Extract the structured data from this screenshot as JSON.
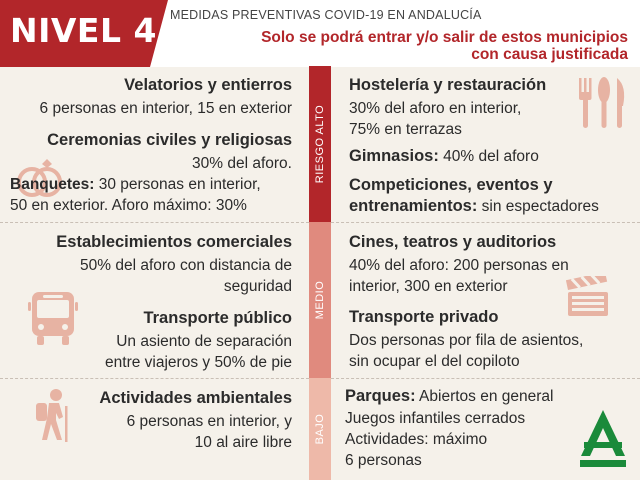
{
  "header": {
    "level": "NIVEL 4",
    "subtitle": "MEDIDAS PREVENTIVAS COVID-19 EN ANDALUCÍA",
    "notice_line1": "Solo se podrá entrar y/o salir de estos municipios",
    "notice_line2": "con causa justificada"
  },
  "risk_labels": {
    "alto": "RIESGO ALTO",
    "medio": "MEDIO",
    "bajo": "BAJO"
  },
  "alto": {
    "velatorios_title": "Velatorios y entierros",
    "velatorios_text": "6 personas en interior, 15 en exterior",
    "ceremonias_title": "Ceremonias civiles y religiosas",
    "ceremonias_text": "30% del aforo.",
    "banquetes_title": "Banquetes:",
    "banquetes_text1": " 30 personas en interior,",
    "banquetes_text2": "50 en exterior. Aforo máximo: 30%",
    "hosteleria_title": "Hostelería y restauración",
    "hosteleria_text1": "30% del aforo en interior,",
    "hosteleria_text2": "75% en terrazas",
    "gimnasios_title": "Gimnasios:",
    "gimnasios_text": " 40% del aforo",
    "competiciones_title1": "Competiciones, eventos y",
    "competiciones_title2": "entrenamientos:",
    "competiciones_text": " sin espectadores"
  },
  "medio": {
    "comercios_title": "Establecimientos comerciales",
    "comercios_text1": "50% del aforo con distancia de",
    "comercios_text2": "seguridad",
    "transporte_publico_title": "Transporte público",
    "transporte_publico_text1": "Un asiento de separación",
    "transporte_publico_text2": "entre viajeros y 50% de pie",
    "cines_title": "Cines, teatros y auditorios",
    "cines_text1": "40% del aforo: 200 personas en",
    "cines_text2": "interior, 300 en exterior",
    "transporte_privado_title": "Transporte privado",
    "transporte_privado_text1": "Dos personas por fila de asientos,",
    "transporte_privado_text2": "sin ocupar el del copiloto"
  },
  "bajo": {
    "actividades_title": "Actividades ambientales",
    "actividades_text1": "6 personas en interior, y",
    "actividades_text2": "10 al aire libre",
    "parques_title": "Parques:",
    "parques_text": " Abiertos en general",
    "juegos_text": "Juegos infantiles cerrados",
    "actividades_max_text": "Actividades: máximo",
    "personas_text": "6 personas"
  },
  "colors": {
    "brand_red": "#b2262a",
    "medio": "#e08a7e",
    "bajo": "#eeb9a9",
    "icon": "#e7b3a3",
    "logo_green": "#1a8a3a"
  },
  "icons": [
    "rings-icon",
    "cutlery-icon",
    "bus-icon",
    "clapperboard-icon",
    "hiker-icon",
    "junta-andalucia-logo"
  ]
}
